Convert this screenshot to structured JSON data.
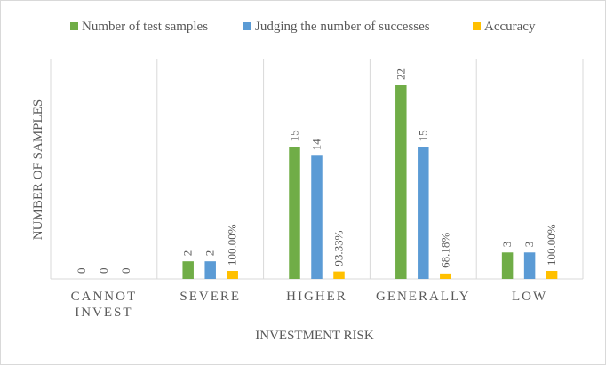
{
  "chart_data": {
    "type": "bar",
    "title": "",
    "xlabel": "INVESTMENT RISK",
    "ylabel": "NUMBER OF SAMPLES",
    "categories": [
      [
        "CANNOT",
        "INVEST"
      ],
      [
        "SEVERE"
      ],
      [
        "HIGHER"
      ],
      [
        "GENERALLY"
      ],
      [
        "LOW"
      ]
    ],
    "series": [
      {
        "name": "Number of test samples",
        "values": [
          0,
          2,
          15,
          22,
          3
        ],
        "labels": [
          "0",
          "2",
          "15",
          "22",
          "3"
        ],
        "color": "#70ad47"
      },
      {
        "name": "Judging the number of successes",
        "values": [
          0,
          2,
          14,
          15,
          3
        ],
        "labels": [
          "0",
          "2",
          "14",
          "15",
          "3"
        ],
        "color": "#5b9bd5"
      },
      {
        "name": "Accuracy",
        "values": [
          0,
          1.0,
          0.9333,
          0.6818,
          1.0
        ],
        "labels": [
          "0",
          "100.00%",
          "93.33%",
          "68.18%",
          "100.00%"
        ],
        "color": "#ffc000"
      }
    ],
    "legend_position": "top",
    "grid": "vertical separators between categories",
    "text_color": "#595959",
    "axis_color": "#d9d9d9"
  }
}
